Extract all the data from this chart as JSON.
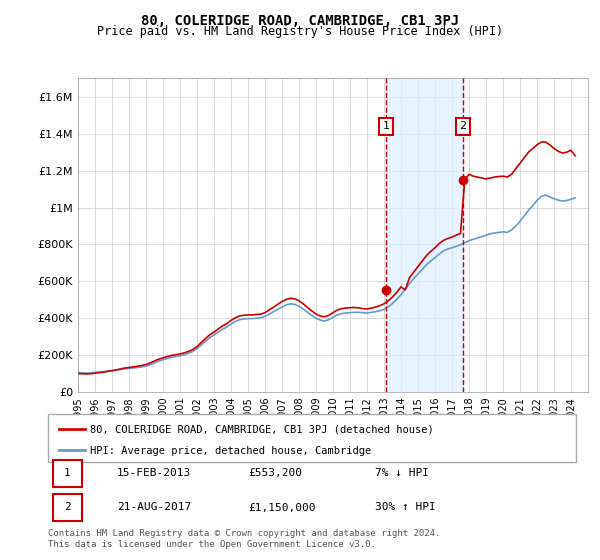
{
  "title": "80, COLERIDGE ROAD, CAMBRIDGE, CB1 3PJ",
  "subtitle": "Price paid vs. HM Land Registry's House Price Index (HPI)",
  "title_fontsize": 11,
  "subtitle_fontsize": 9,
  "ylabel_ticks": [
    "£0",
    "£200K",
    "£400K",
    "£600K",
    "£800K",
    "£1M",
    "£1.2M",
    "£1.4M",
    "£1.6M"
  ],
  "ylabel_values": [
    0,
    200000,
    400000,
    600000,
    800000,
    1000000,
    1200000,
    1400000,
    1600000
  ],
  "ylim": [
    0,
    1700000
  ],
  "hpi_color": "#6699cc",
  "price_color": "#cc0000",
  "vline_color": "#cc0000",
  "shade_color": "#ddeeff",
  "annotation_box_color": "#cc0000",
  "sale1_date_num": 2013.12,
  "sale1_label": "1",
  "sale1_price": 553200,
  "sale2_date_num": 2017.64,
  "sale2_label": "2",
  "sale2_price": 1150000,
  "legend_label_price": "80, COLERIDGE ROAD, CAMBRIDGE, CB1 3PJ (detached house)",
  "legend_label_hpi": "HPI: Average price, detached house, Cambridge",
  "table_row1": [
    "1",
    "15-FEB-2013",
    "£553,200",
    "7% ↓ HPI"
  ],
  "table_row2": [
    "2",
    "21-AUG-2017",
    "£1,150,000",
    "30% ↑ HPI"
  ],
  "footnote": "Contains HM Land Registry data © Crown copyright and database right 2024.\nThis data is licensed under the Open Government Licence v3.0.",
  "hpi_data": {
    "years": [
      1995.0,
      1995.25,
      1995.5,
      1995.75,
      1996.0,
      1996.25,
      1996.5,
      1996.75,
      1997.0,
      1997.25,
      1997.5,
      1997.75,
      1998.0,
      1998.25,
      1998.5,
      1998.75,
      1999.0,
      1999.25,
      1999.5,
      1999.75,
      2000.0,
      2000.25,
      2000.5,
      2000.75,
      2001.0,
      2001.25,
      2001.5,
      2001.75,
      2002.0,
      2002.25,
      2002.5,
      2002.75,
      2003.0,
      2003.25,
      2003.5,
      2003.75,
      2004.0,
      2004.25,
      2004.5,
      2004.75,
      2005.0,
      2005.25,
      2005.5,
      2005.75,
      2006.0,
      2006.25,
      2006.5,
      2006.75,
      2007.0,
      2007.25,
      2007.5,
      2007.75,
      2008.0,
      2008.25,
      2008.5,
      2008.75,
      2009.0,
      2009.25,
      2009.5,
      2009.75,
      2010.0,
      2010.25,
      2010.5,
      2010.75,
      2011.0,
      2011.25,
      2011.5,
      2011.75,
      2012.0,
      2012.25,
      2012.5,
      2012.75,
      2013.0,
      2013.25,
      2013.5,
      2013.75,
      2014.0,
      2014.25,
      2014.5,
      2014.75,
      2015.0,
      2015.25,
      2015.5,
      2015.75,
      2016.0,
      2016.25,
      2016.5,
      2016.75,
      2017.0,
      2017.25,
      2017.5,
      2017.75,
      2018.0,
      2018.25,
      2018.5,
      2018.75,
      2019.0,
      2019.25,
      2019.5,
      2019.75,
      2020.0,
      2020.25,
      2020.5,
      2020.75,
      2021.0,
      2021.25,
      2021.5,
      2021.75,
      2022.0,
      2022.25,
      2022.5,
      2022.75,
      2023.0,
      2023.25,
      2023.5,
      2023.75,
      2024.0,
      2024.25
    ],
    "values": [
      105000,
      104000,
      103000,
      104000,
      106000,
      108000,
      110000,
      112000,
      115000,
      118000,
      122000,
      126000,
      128000,
      130000,
      133000,
      136000,
      140000,
      148000,
      158000,
      168000,
      175000,
      182000,
      188000,
      192000,
      196000,
      202000,
      210000,
      220000,
      235000,
      255000,
      275000,
      295000,
      310000,
      325000,
      340000,
      352000,
      368000,
      382000,
      392000,
      396000,
      398000,
      398000,
      400000,
      402000,
      410000,
      422000,
      435000,
      448000,
      460000,
      472000,
      478000,
      475000,
      465000,
      450000,
      432000,
      415000,
      400000,
      390000,
      385000,
      392000,
      405000,
      418000,
      425000,
      428000,
      430000,
      432000,
      432000,
      430000,
      428000,
      432000,
      435000,
      440000,
      448000,
      462000,
      480000,
      502000,
      528000,
      558000,
      588000,
      615000,
      640000,
      665000,
      690000,
      710000,
      728000,
      748000,
      765000,
      775000,
      782000,
      790000,
      798000,
      810000,
      820000,
      828000,
      835000,
      842000,
      850000,
      858000,
      862000,
      865000,
      868000,
      865000,
      878000,
      900000,
      925000,
      955000,
      985000,
      1010000,
      1038000,
      1060000,
      1068000,
      1058000,
      1048000,
      1040000,
      1035000,
      1038000,
      1045000,
      1052000
    ]
  },
  "price_data": {
    "years": [
      1995.0,
      1995.25,
      1995.5,
      1995.75,
      1996.0,
      1996.25,
      1996.5,
      1996.75,
      1997.0,
      1997.25,
      1997.5,
      1997.75,
      1998.0,
      1998.25,
      1998.5,
      1998.75,
      1999.0,
      1999.25,
      1999.5,
      1999.75,
      2000.0,
      2000.25,
      2000.5,
      2000.75,
      2001.0,
      2001.25,
      2001.5,
      2001.75,
      2002.0,
      2002.25,
      2002.5,
      2002.75,
      2003.0,
      2003.25,
      2003.5,
      2003.75,
      2004.0,
      2004.25,
      2004.5,
      2004.75,
      2005.0,
      2005.25,
      2005.5,
      2005.75,
      2006.0,
      2006.25,
      2006.5,
      2006.75,
      2007.0,
      2007.25,
      2007.5,
      2007.75,
      2008.0,
      2008.25,
      2008.5,
      2008.75,
      2009.0,
      2009.25,
      2009.5,
      2009.75,
      2010.0,
      2010.25,
      2010.5,
      2010.75,
      2011.0,
      2011.25,
      2011.5,
      2011.75,
      2012.0,
      2012.25,
      2012.5,
      2012.75,
      2013.0,
      2013.25,
      2013.5,
      2013.75,
      2014.0,
      2014.25,
      2014.5,
      2014.75,
      2015.0,
      2015.25,
      2015.5,
      2015.75,
      2016.0,
      2016.25,
      2016.5,
      2016.75,
      2017.0,
      2017.25,
      2017.5,
      2017.75,
      2018.0,
      2018.25,
      2018.5,
      2018.75,
      2019.0,
      2019.25,
      2019.5,
      2019.75,
      2020.0,
      2020.25,
      2020.5,
      2020.75,
      2021.0,
      2021.25,
      2021.5,
      2021.75,
      2022.0,
      2022.25,
      2022.5,
      2022.75,
      2023.0,
      2023.25,
      2023.5,
      2023.75,
      2024.0,
      2024.25
    ],
    "values": [
      100000,
      99000,
      98000,
      99000,
      102000,
      105000,
      108000,
      112000,
      116000,
      120000,
      125000,
      130000,
      133000,
      136000,
      140000,
      144000,
      149000,
      158000,
      168000,
      178000,
      185000,
      192000,
      198000,
      202000,
      206000,
      212000,
      220000,
      230000,
      246000,
      268000,
      290000,
      310000,
      325000,
      342000,
      358000,
      370000,
      388000,
      402000,
      412000,
      416000,
      418000,
      418000,
      420000,
      422000,
      430000,
      445000,
      460000,
      475000,
      490000,
      502000,
      508000,
      505000,
      494000,
      478000,
      458000,
      440000,
      423000,
      412000,
      408000,
      416000,
      430000,
      444000,
      452000,
      455000,
      457000,
      458000,
      456000,
      452000,
      450000,
      455000,
      460000,
      468000,
      478000,
      494000,
      515000,
      540000,
      570000,
      553200,
      620000,
      650000,
      680000,
      710000,
      740000,
      762000,
      782000,
      805000,
      822000,
      832000,
      840000,
      850000,
      860000,
      1150000,
      1180000,
      1170000,
      1165000,
      1160000,
      1155000,
      1160000,
      1165000,
      1168000,
      1170000,
      1165000,
      1180000,
      1210000,
      1240000,
      1270000,
      1300000,
      1320000,
      1340000,
      1355000,
      1355000,
      1340000,
      1320000,
      1305000,
      1295000,
      1300000,
      1310000,
      1280000
    ]
  }
}
